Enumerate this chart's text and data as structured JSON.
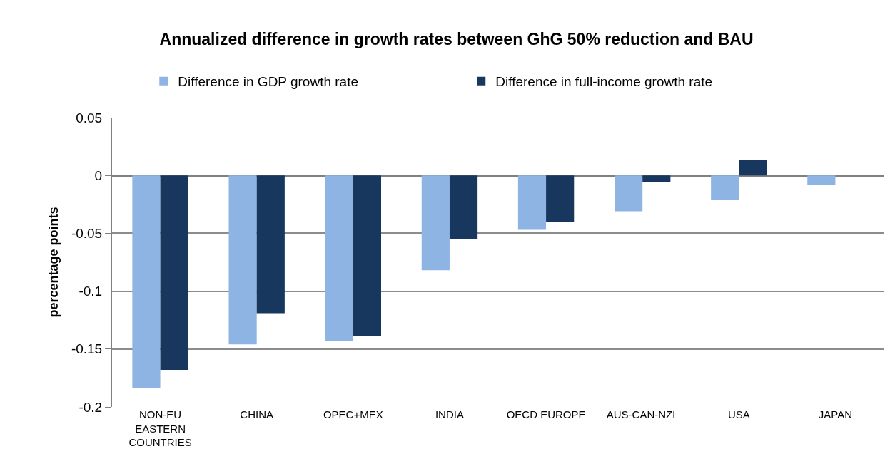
{
  "chart_data": {
    "type": "bar",
    "title": "Annualized difference in growth rates between GhG 50% reduction and BAU",
    "ylabel": "percentage points",
    "categories": [
      "NON-EU EASTERN COUNTRIES",
      "CHINA",
      "OPEC+MEX",
      "INDIA",
      "OECD EUROPE",
      "AUS-CAN-NZL",
      "USA",
      "JAPAN"
    ],
    "series": [
      {
        "name": "Difference in GDP growth rate",
        "color": "#8eb4e3",
        "values": [
          -0.184,
          -0.146,
          -0.143,
          -0.082,
          -0.047,
          -0.031,
          -0.021,
          -0.008
        ]
      },
      {
        "name": "Difference in full-income growth rate",
        "color": "#17375e",
        "values": [
          -0.168,
          -0.119,
          -0.139,
          -0.055,
          -0.04,
          -0.006,
          0.013,
          0
        ]
      }
    ],
    "ylim": [
      -0.2,
      0.05
    ],
    "yticks": [
      0.05,
      0,
      -0.05,
      -0.1,
      -0.15,
      -0.2
    ],
    "grid": "y",
    "legend": "top"
  }
}
